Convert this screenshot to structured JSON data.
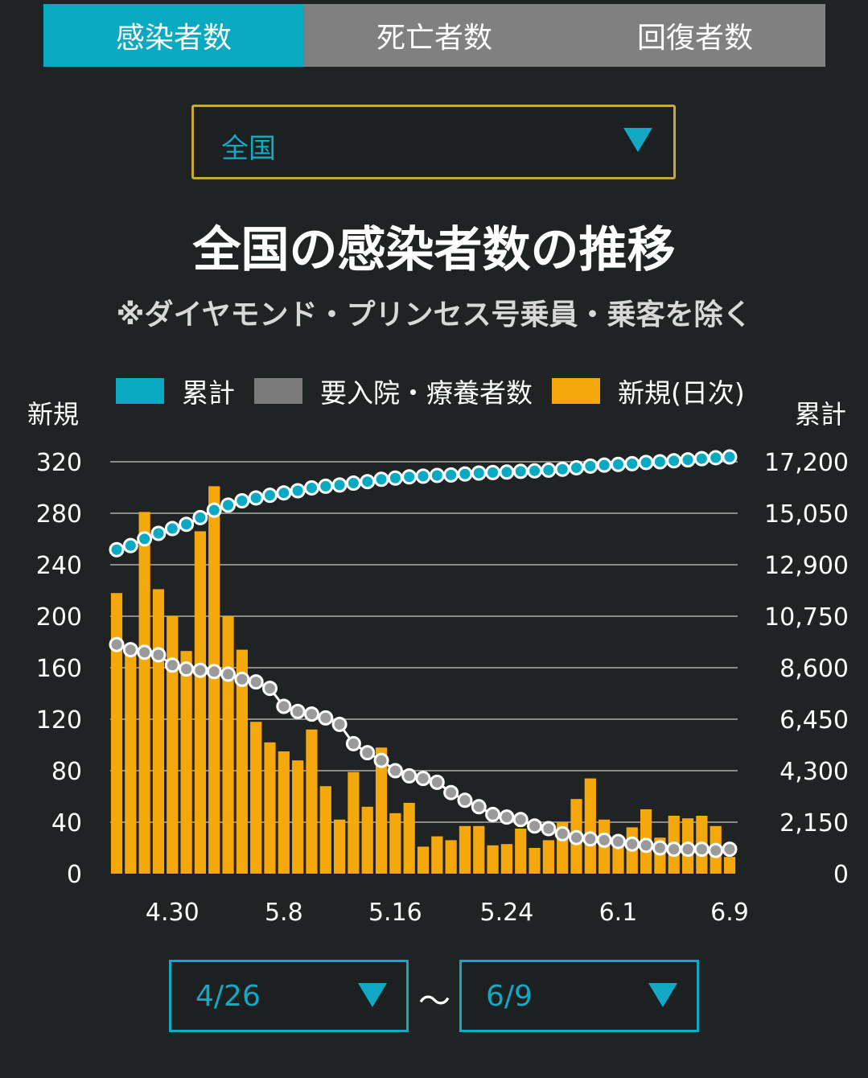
{
  "tabs": [
    "感染者数",
    "死亡者数",
    "回復者数"
  ],
  "region": {
    "selected": "全国"
  },
  "title": "全国の感染者数の推移",
  "subtitle": "※ダイヤモンド・プリンセス号乗員・乗客を除く",
  "legend": {
    "cumulative": "累計",
    "hospitalized": "要入院・療養者数",
    "new_daily": "新規(日次)"
  },
  "axis_left_title": "新規",
  "axis_right_title": "累計",
  "range": {
    "start": "4/26",
    "separator": "〜",
    "end": "6/9"
  },
  "colors": {
    "accent": "#0aa9c2",
    "bar": "#f5a80c",
    "hospitalized": "#9a9a9a",
    "tab_inactive": "#808080",
    "background": "#1f2323"
  },
  "chart_data": {
    "type": "bar",
    "x": [
      "4/26",
      "4/27",
      "4/28",
      "4/29",
      "4/30",
      "5/1",
      "5/2",
      "5/3",
      "5/4",
      "5/5",
      "5/6",
      "5/7",
      "5/8",
      "5/9",
      "5/10",
      "5/11",
      "5/12",
      "5/13",
      "5/14",
      "5/15",
      "5/16",
      "5/17",
      "5/18",
      "5/19",
      "5/20",
      "5/21",
      "5/22",
      "5/23",
      "5/24",
      "5/25",
      "5/26",
      "5/27",
      "5/28",
      "5/29",
      "5/30",
      "5/31",
      "6/1",
      "6/2",
      "6/3",
      "6/4",
      "6/5",
      "6/6",
      "6/7",
      "6/8",
      "6/9"
    ],
    "x_tick_labels": [
      "4.30",
      "5.8",
      "5.16",
      "5.24",
      "6.1",
      "6.9"
    ],
    "y_left": {
      "title": "新規",
      "ylim": [
        0,
        320
      ],
      "ticks": [
        "0",
        "40",
        "80",
        "120",
        "160",
        "200",
        "240",
        "280",
        "320"
      ]
    },
    "y_right": {
      "title": "累計",
      "ylim": [
        0,
        17200
      ],
      "ticks": [
        "0",
        "2,150",
        "4,300",
        "6,450",
        "8,600",
        "10,750",
        "12,900",
        "15,050",
        "17,200"
      ]
    },
    "series": [
      {
        "name": "新規(日次)",
        "type": "bar",
        "axis": "left",
        "values": [
          218,
          173,
          281,
          221,
          200,
          173,
          266,
          301,
          200,
          174,
          118,
          102,
          95,
          88,
          112,
          68,
          42,
          79,
          52,
          98,
          47,
          55,
          21,
          29,
          26,
          37,
          37,
          22,
          23,
          35,
          20,
          26,
          40,
          58,
          74,
          42,
          27,
          36,
          50,
          28,
          45,
          43,
          45,
          37,
          13
        ]
      },
      {
        "name": "要入院・療養者数",
        "type": "line",
        "axis": "left",
        "values": [
          178,
          174,
          172,
          170,
          162,
          159,
          158,
          157,
          155,
          151,
          149,
          144,
          130,
          126,
          124,
          121,
          116,
          101,
          94,
          88,
          80,
          76,
          74,
          71,
          63,
          57,
          52,
          46,
          44,
          42,
          37,
          35,
          31,
          28,
          27,
          26,
          25,
          23,
          22,
          20,
          19,
          19,
          19,
          18,
          19
        ]
      },
      {
        "name": "累計",
        "type": "line",
        "axis": "right",
        "values": [
          13530,
          13700,
          13980,
          14210,
          14410,
          14590,
          14870,
          15180,
          15390,
          15570,
          15690,
          15800,
          15900,
          15990,
          16110,
          16180,
          16230,
          16310,
          16370,
          16470,
          16520,
          16570,
          16600,
          16630,
          16650,
          16690,
          16730,
          16750,
          16770,
          16800,
          16820,
          16850,
          16890,
          16950,
          17020,
          17060,
          17090,
          17120,
          17170,
          17200,
          17240,
          17280,
          17330,
          17370,
          17400
        ]
      }
    ],
    "grid": true,
    "legend_position": "top"
  }
}
